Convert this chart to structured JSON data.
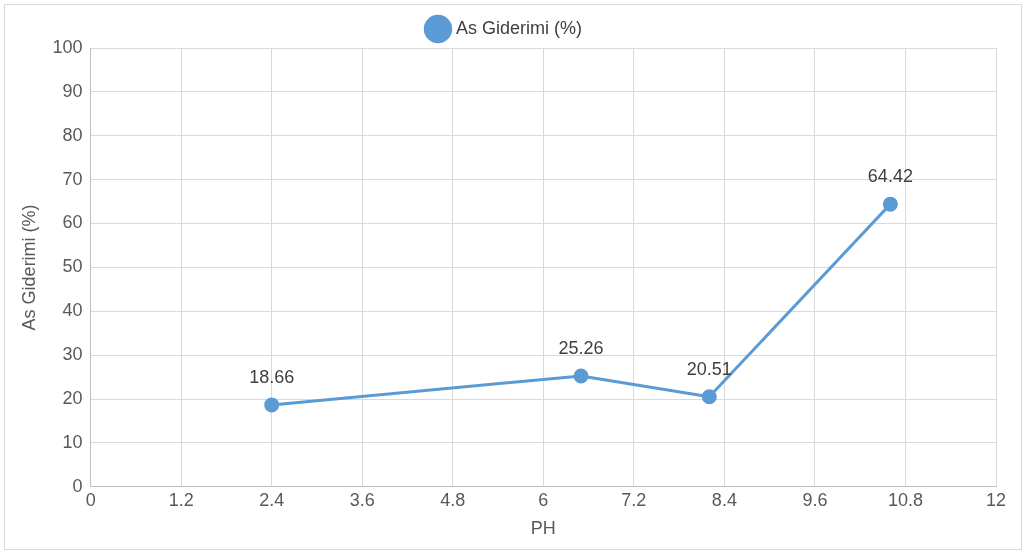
{
  "chart_data": {
    "type": "line",
    "xlabel": "PH",
    "ylabel": "As Giderimi (%)",
    "x": [
      2.4,
      6.5,
      8.2,
      10.6
    ],
    "series": [
      {
        "name": "As Giderimi (%)",
        "color": "#5b9bd5",
        "values": [
          18.66,
          25.26,
          20.51,
          64.42
        ]
      }
    ],
    "xlim": [
      0,
      12
    ],
    "xticks": [
      0,
      1.2,
      2.4,
      3.6,
      4.8,
      6,
      7.2,
      8.4,
      9.6,
      10.8,
      12
    ],
    "ylim": [
      0,
      100
    ],
    "yticks": [
      0,
      10,
      20,
      30,
      40,
      50,
      60,
      70,
      80,
      90,
      100
    ],
    "grid": true,
    "legend": "top",
    "marker": "circle",
    "line_style": "solid",
    "data_labels": true
  }
}
